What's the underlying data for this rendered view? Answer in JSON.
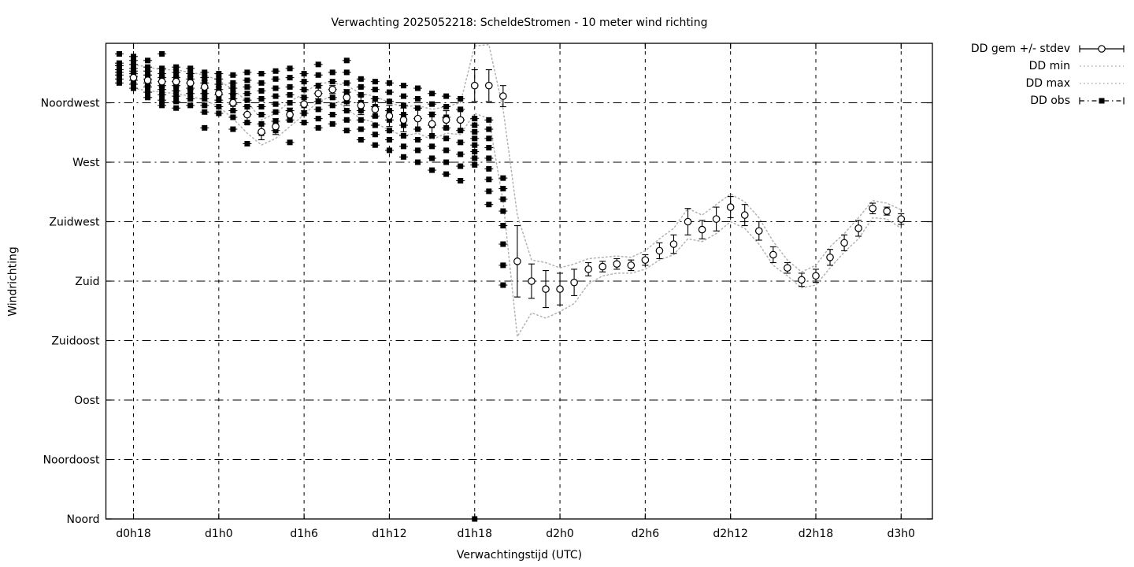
{
  "chart_data": {
    "type": "scatter",
    "title": "Verwachting 2025052218: ScheldeStromen - 10 meter wind richting",
    "xlabel": "Verwachtingstijd (UTC)",
    "ylabel": "Windrichting",
    "grid": true,
    "legend_position": "top-right-outside",
    "colors": {
      "foreground": "#000000",
      "envelope": "#b2b2b2",
      "background": "#ffffff"
    },
    "x_range_hours": [
      -1.94,
      56.2
    ],
    "y_range_deg": [
      0,
      360
    ],
    "x_ticks": [
      {
        "h": 0,
        "label": "d0h18"
      },
      {
        "h": 6,
        "label": "d1h0"
      },
      {
        "h": 12,
        "label": "d1h6"
      },
      {
        "h": 18,
        "label": "d1h12"
      },
      {
        "h": 24,
        "label": "d1h18"
      },
      {
        "h": 30,
        "label": "d2h0"
      },
      {
        "h": 36,
        "label": "d2h6"
      },
      {
        "h": 42,
        "label": "d2h12"
      },
      {
        "h": 48,
        "label": "d2h18"
      },
      {
        "h": 54,
        "label": "d3h0"
      }
    ],
    "y_ticks": [
      {
        "deg": 0,
        "label": "Noord"
      },
      {
        "deg": 45,
        "label": "Noordoost"
      },
      {
        "deg": 90,
        "label": "Oost"
      },
      {
        "deg": 135,
        "label": "Zuidoost"
      },
      {
        "deg": 180,
        "label": "Zuid"
      },
      {
        "deg": 225,
        "label": "Zuidwest"
      },
      {
        "deg": 270,
        "label": "West"
      },
      {
        "deg": 315,
        "label": "Noordwest"
      }
    ],
    "legend": [
      {
        "label": "DD gem +/- stdev",
        "marker": "errorbar-circle"
      },
      {
        "label": "DD min",
        "marker": "dotted-line"
      },
      {
        "label": "DD max",
        "marker": "dotted-line"
      },
      {
        "label": "DD obs",
        "marker": "dashdot-square"
      }
    ],
    "series": {
      "mean": {
        "name": "DD gem",
        "hour_start": 0,
        "hour_step": 1,
        "values": [
          334,
          332,
          331,
          331,
          330,
          327,
          322,
          315,
          306,
          293,
          297,
          306,
          314,
          322,
          325,
          319,
          313,
          310,
          305,
          302,
          303,
          299,
          302,
          302,
          328,
          328,
          320,
          195,
          180,
          174,
          174,
          179,
          189,
          191,
          193,
          192,
          196,
          203,
          208,
          225,
          219,
          227,
          236,
          230,
          218,
          200,
          190,
          181,
          184,
          198,
          209,
          220,
          235,
          233,
          227
        ],
        "stdev": [
          4,
          4,
          4,
          4,
          5,
          5,
          5,
          6,
          7,
          6,
          6,
          5,
          5,
          4,
          3,
          6,
          7,
          6,
          8,
          9,
          8,
          9,
          7,
          7,
          12,
          12,
          8,
          27,
          13,
          14,
          12,
          10,
          5,
          4,
          4,
          4,
          4,
          6,
          7,
          10,
          7,
          9,
          8,
          8,
          7,
          6,
          4,
          5,
          5,
          6,
          6,
          6,
          4,
          3,
          4
        ]
      },
      "min": {
        "name": "DD min",
        "hour_start": 0,
        "hour_step": 1,
        "values": [
          326,
          324,
          323,
          322,
          320,
          317,
          312,
          303,
          292,
          283,
          288,
          297,
          306,
          316,
          320,
          310,
          303,
          300,
          294,
          290,
          292,
          287,
          292,
          291,
          307,
          303,
          240,
          138,
          156,
          152,
          157,
          163,
          178,
          184,
          186,
          186,
          189,
          196,
          200,
          212,
          210,
          216,
          225,
          220,
          208,
          192,
          184,
          175,
          177,
          190,
          202,
          212,
          228,
          227,
          220
        ]
      },
      "max": {
        "name": "DD max",
        "hour_start": 0,
        "hour_step": 1,
        "values": [
          344,
          342,
          340,
          340,
          338,
          336,
          332,
          325,
          316,
          302,
          307,
          316,
          322,
          330,
          330,
          328,
          322,
          320,
          315,
          312,
          313,
          310,
          312,
          315,
          358,
          359,
          310,
          230,
          196,
          194,
          190,
          193,
          197,
          198,
          199,
          198,
          203,
          212,
          220,
          235,
          230,
          238,
          246,
          240,
          228,
          210,
          196,
          187,
          192,
          206,
          216,
          228,
          241,
          239,
          234
        ]
      },
      "obs": {
        "name": "DD obs",
        "clusters": [
          {
            "t": -1,
            "dirs": [
              352,
              345,
              343,
              340,
              338,
              336,
              333,
              330
            ]
          },
          {
            "t": 0,
            "dirs": [
              350,
              347,
              344,
              341,
              339,
              337,
              335,
              332,
              329,
              326
            ]
          },
          {
            "t": 1,
            "dirs": [
              347,
              342,
              339,
              336,
              333,
              330,
              327,
              323,
              319
            ]
          },
          {
            "t": 2,
            "dirs": [
              352,
              341,
              337,
              334,
              331,
              328,
              325,
              321,
              317,
              313
            ]
          },
          {
            "t": 3,
            "dirs": [
              342,
              338,
              334,
              331,
              328,
              324,
              320,
              316,
              311
            ]
          },
          {
            "t": 4,
            "dirs": [
              341,
              337,
              333,
              330,
              326,
              322,
              318,
              313
            ]
          },
          {
            "t": 5,
            "dirs": [
              338,
              334,
              330,
              326,
              322,
              318,
              313,
              308,
              296
            ]
          },
          {
            "t": 6,
            "dirs": [
              337,
              333,
              329,
              325,
              321,
              317,
              312,
              307
            ]
          },
          {
            "t": 7,
            "dirs": [
              336,
              330,
              326,
              322,
              318,
              314,
              309,
              304,
              295
            ]
          },
          {
            "t": 8,
            "dirs": [
              338,
              332,
              327,
              322,
              317,
              312,
              306,
              300,
              284
            ]
          },
          {
            "t": 9,
            "dirs": [
              337,
              330,
              324,
              318,
              312,
              306,
              299,
              292
            ]
          },
          {
            "t": 10,
            "dirs": [
              339,
              333,
              326,
              320,
              314,
              308,
              301,
              294
            ]
          },
          {
            "t": 11,
            "dirs": [
              341,
              334,
              327,
              321,
              315,
              309,
              302,
              285
            ]
          },
          {
            "t": 12,
            "dirs": [
              337,
              331,
              325,
              319,
              313,
              307,
              300
            ]
          },
          {
            "t": 13,
            "dirs": [
              344,
              336,
              328,
              322,
              316,
              310,
              303,
              296
            ]
          },
          {
            "t": 14,
            "dirs": [
              338,
              331,
              325,
              319,
              313,
              306,
              299
            ]
          },
          {
            "t": 15,
            "dirs": [
              347,
              338,
              330,
              323,
              316,
              309,
              302,
              294
            ]
          },
          {
            "t": 16,
            "dirs": [
              333,
              327,
              321,
              315,
              309,
              302,
              295,
              287
            ]
          },
          {
            "t": 17,
            "dirs": [
              331,
              325,
              318,
              312,
              305,
              298,
              291,
              283
            ]
          },
          {
            "t": 18,
            "dirs": [
              330,
              323,
              316,
              309,
              302,
              294,
              287,
              279
            ]
          },
          {
            "t": 19,
            "dirs": [
              328,
              320,
              313,
              306,
              298,
              290,
              282,
              274
            ]
          },
          {
            "t": 20,
            "dirs": [
              326,
              318,
              311,
              303,
              295,
              287,
              279,
              270
            ]
          },
          {
            "t": 21,
            "dirs": [
              322,
              314,
              306,
              298,
              290,
              282,
              273,
              264
            ]
          },
          {
            "t": 22,
            "dirs": [
              320,
              312,
              304,
              296,
              288,
              279,
              270,
              261
            ]
          },
          {
            "t": 23,
            "dirs": [
              318,
              310,
              302,
              294,
              285,
              276,
              267,
              256
            ]
          },
          {
            "t": 24,
            "dirs": [
              303,
              298,
              293,
              288,
              283,
              278,
              273,
              268,
              0
            ]
          },
          {
            "t": 25,
            "dirs": [
              302,
              295,
              288,
              281,
              273,
              265,
              257,
              248,
              238
            ]
          },
          {
            "t": 26,
            "dirs": [
              258,
              250,
              242,
              233,
              222,
              208,
              192,
              177
            ]
          }
        ]
      }
    }
  }
}
